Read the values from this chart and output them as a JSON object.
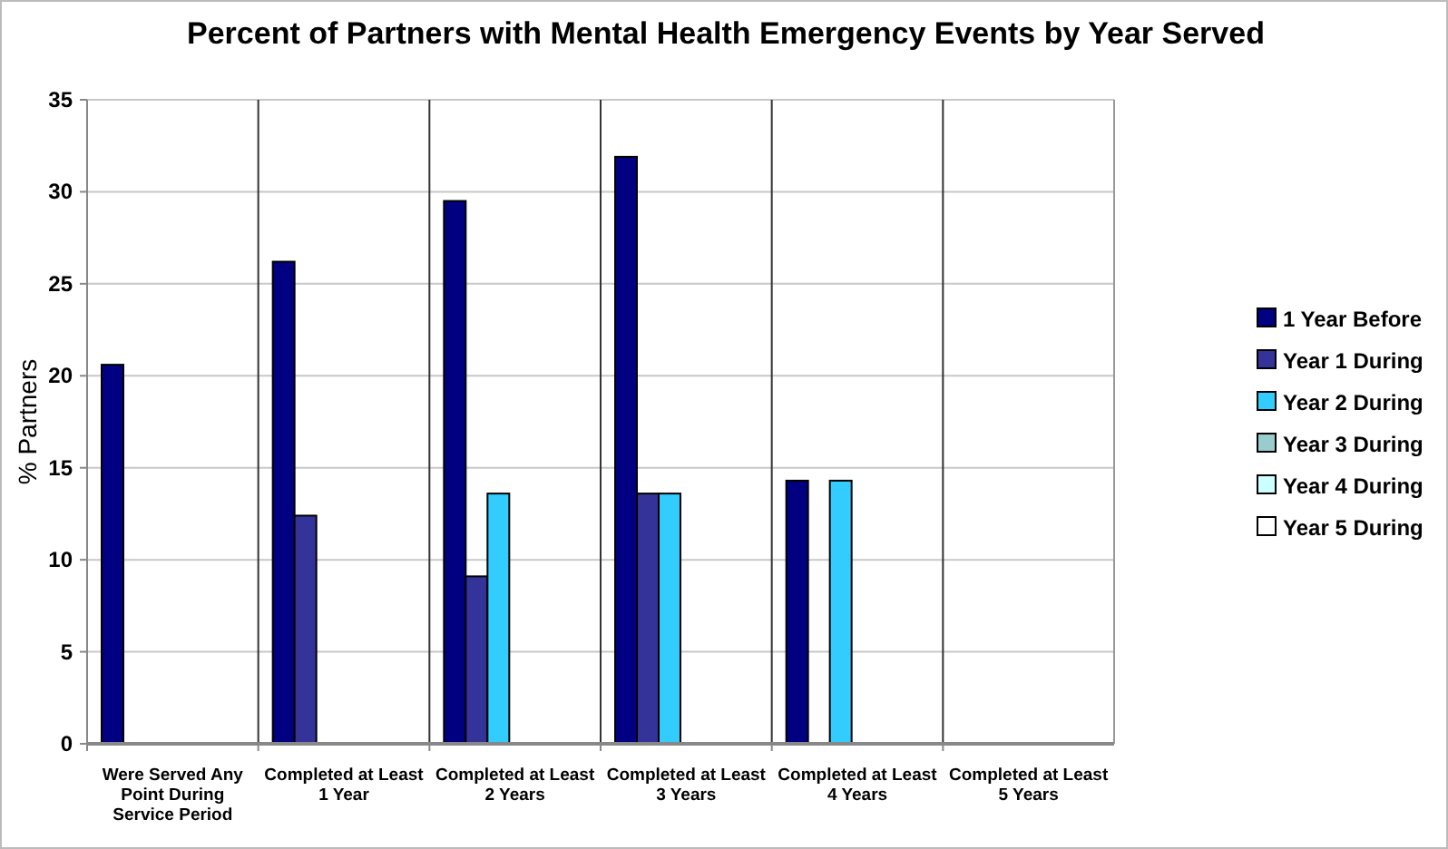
{
  "chart_data": {
    "type": "bar",
    "title": "Percent of Partners with Mental Health Emergency Events by Year Served",
    "ylabel": "% Partners",
    "categories": [
      "Were Served Any Point During Service Period",
      "Completed at Least 1 Year",
      "Completed at Least 2 Years",
      "Completed at Least 3 Years",
      "Completed at Least 4 Years",
      "Completed at Least 5 Years"
    ],
    "series": [
      {
        "name": "1 Year Before",
        "color": "#000080",
        "values": [
          20.6,
          26.2,
          29.5,
          31.9,
          14.3,
          null
        ]
      },
      {
        "name": "Year 1 During",
        "color": "#333399",
        "values": [
          null,
          12.4,
          9.1,
          13.6,
          null,
          null
        ]
      },
      {
        "name": "Year 2 During",
        "color": "#33ccff",
        "values": [
          null,
          null,
          13.6,
          13.6,
          14.3,
          null
        ]
      },
      {
        "name": "Year 3 During",
        "color": "#99cccc",
        "values": [
          null,
          null,
          null,
          null,
          null,
          null
        ]
      },
      {
        "name": "Year 4 During",
        "color": "#ccffff",
        "values": [
          null,
          null,
          null,
          null,
          null,
          null
        ]
      },
      {
        "name": "Year 5 During",
        "color": "#ffffff",
        "values": [
          null,
          null,
          null,
          null,
          null,
          null
        ]
      }
    ],
    "ylim": [
      0,
      35
    ],
    "yticks": [
      0,
      5,
      10,
      15,
      20,
      25,
      30,
      35
    ],
    "grid": true,
    "legend": "right"
  }
}
